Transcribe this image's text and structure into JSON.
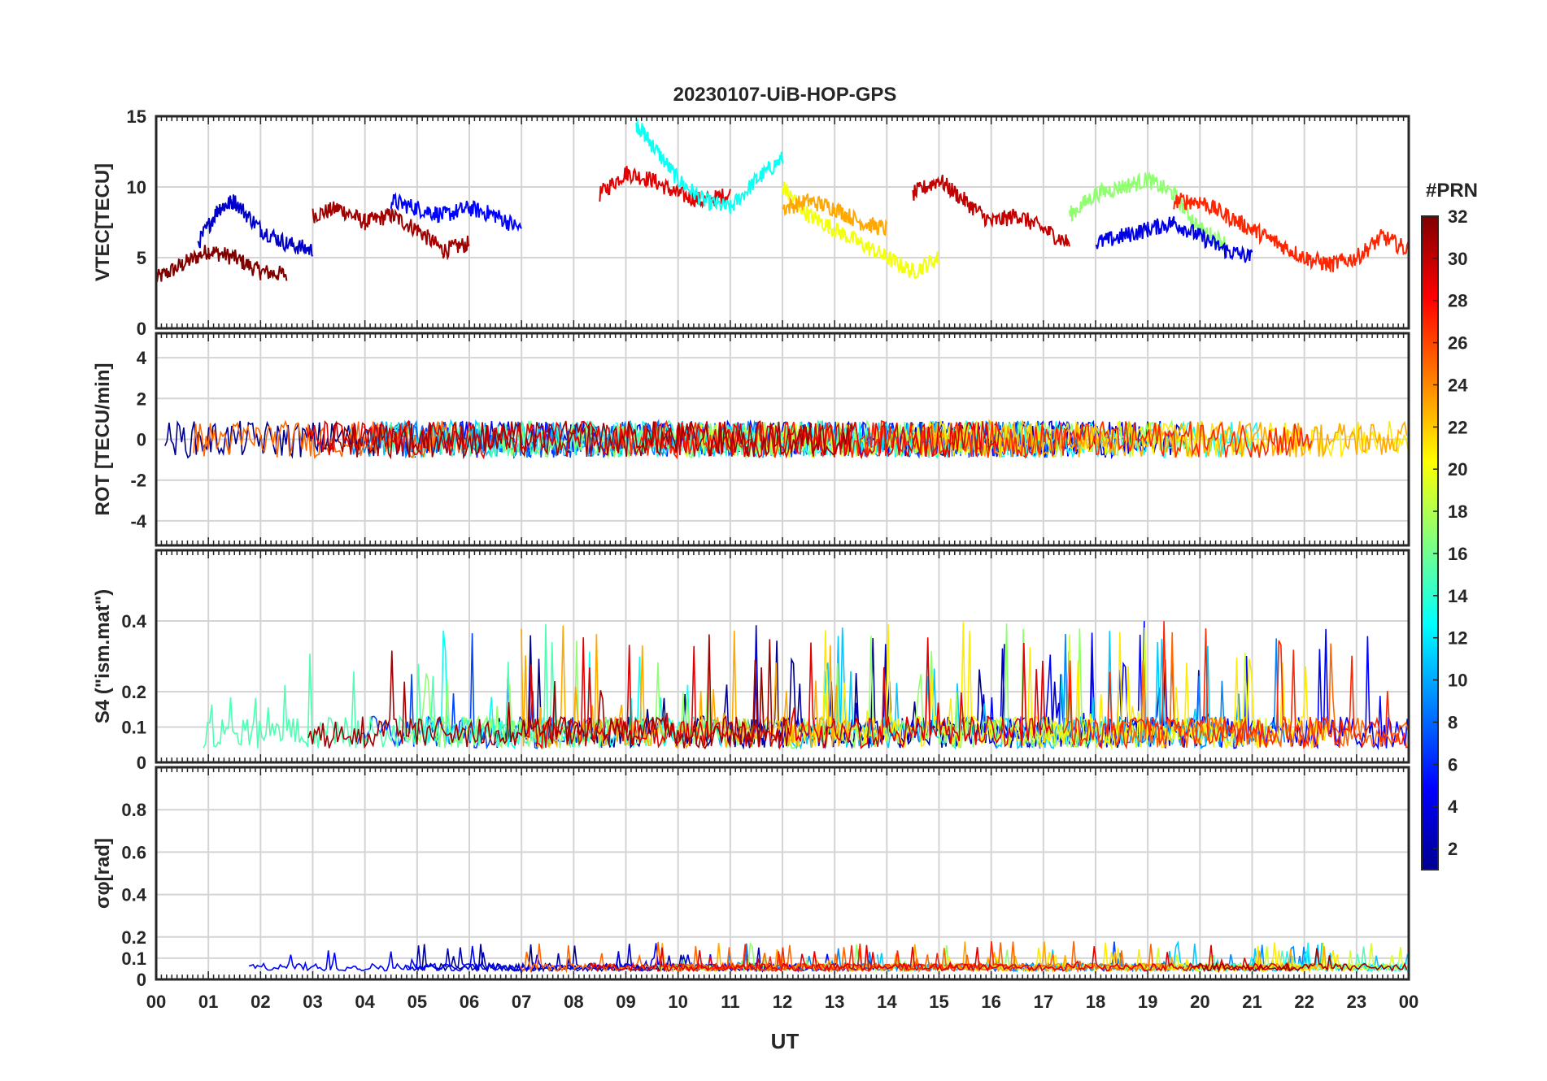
{
  "figure": {
    "title": "20230107-UiB-HOP-GPS",
    "xlabel": "UT",
    "x_tick_labels": [
      "00",
      "01",
      "02",
      "03",
      "04",
      "05",
      "06",
      "07",
      "08",
      "09",
      "10",
      "11",
      "12",
      "13",
      "14",
      "15",
      "16",
      "17",
      "18",
      "19",
      "20",
      "21",
      "22",
      "23",
      "00"
    ]
  },
  "colorbar": {
    "title": "#PRN",
    "range": [
      1,
      32
    ],
    "tick_labels": [
      "2",
      "4",
      "6",
      "8",
      "10",
      "12",
      "14",
      "16",
      "18",
      "20",
      "22",
      "24",
      "26",
      "28",
      "30",
      "32"
    ],
    "colormap": "jet",
    "colors": [
      "#00008f",
      "#0000ff",
      "#0080ff",
      "#00ffff",
      "#80ff80",
      "#ffff00",
      "#ff8000",
      "#ff0000",
      "#800000"
    ]
  },
  "chart_data": [
    {
      "type": "line",
      "panel": "vtec",
      "ylabel": "VTEC[TECU]",
      "ylim": [
        0,
        15
      ],
      "y_ticks": [
        "0",
        "5",
        "10",
        "15"
      ],
      "grid": true,
      "x_range_hours": [
        0,
        24
      ],
      "series": [
        {
          "prn": 32,
          "x": [
            0.0,
            0.5,
            1.0,
            1.5,
            2.0,
            2.5
          ],
          "y": [
            3.5,
            4.5,
            5.5,
            5.0,
            4.0,
            3.8
          ]
        },
        {
          "prn": 31,
          "x": [
            3.0,
            3.5,
            4.0,
            4.5,
            5.0,
            5.5,
            6.0
          ],
          "y": [
            8.0,
            8.5,
            7.5,
            8.0,
            7.0,
            5.5,
            6.0
          ]
        },
        {
          "prn": 29,
          "x": [
            8.5,
            9.0,
            9.5,
            10.0,
            10.5,
            11.0
          ],
          "y": [
            9.5,
            11.0,
            10.5,
            9.5,
            9.0,
            9.5
          ]
        },
        {
          "prn": 13,
          "x": [
            9.2,
            9.5,
            10.0,
            10.5,
            11.0,
            11.5,
            12.0
          ],
          "y": [
            14.5,
            13.0,
            10.5,
            9.0,
            8.5,
            10.5,
            12.0
          ]
        },
        {
          "prn": 3,
          "x": [
            0.8,
            1.2,
            1.5,
            2.0,
            2.5,
            3.0
          ],
          "y": [
            6.0,
            8.5,
            9.0,
            7.0,
            6.0,
            5.5
          ]
        },
        {
          "prn": 5,
          "x": [
            4.5,
            5.0,
            5.5,
            6.0,
            6.5,
            7.0
          ],
          "y": [
            9.0,
            8.5,
            8.0,
            8.5,
            8.0,
            7.0
          ]
        },
        {
          "prn": 20,
          "x": [
            12.0,
            12.5,
            13.0,
            13.5,
            14.0,
            14.5,
            15.0
          ],
          "y": [
            10.0,
            8.0,
            7.0,
            6.0,
            5.0,
            4.0,
            5.0
          ]
        },
        {
          "prn": 23,
          "x": [
            12.0,
            12.5,
            13.0,
            13.5,
            14.0
          ],
          "y": [
            8.5,
            9.0,
            8.5,
            7.5,
            7.0
          ]
        },
        {
          "prn": 30,
          "x": [
            14.5,
            15.0,
            15.5,
            16.0,
            16.5,
            17.0,
            17.5
          ],
          "y": [
            9.5,
            10.5,
            9.0,
            7.5,
            8.0,
            7.0,
            6.0
          ]
        },
        {
          "prn": 17,
          "x": [
            17.5,
            18.0,
            18.5,
            19.0,
            19.5,
            20.0,
            20.5
          ],
          "y": [
            8.0,
            9.5,
            10.0,
            10.5,
            9.5,
            7.0,
            6.0
          ]
        },
        {
          "prn": 4,
          "x": [
            18.0,
            18.5,
            19.0,
            19.5,
            20.0,
            20.5,
            21.0
          ],
          "y": [
            6.0,
            6.5,
            7.0,
            7.5,
            6.5,
            5.5,
            5.0
          ]
        },
        {
          "prn": 27,
          "x": [
            19.5,
            20.0,
            20.5,
            21.0,
            21.5,
            22.0,
            22.5,
            23.0,
            23.5,
            24.0
          ],
          "y": [
            9.0,
            9.0,
            8.0,
            7.0,
            6.0,
            5.0,
            4.5,
            5.0,
            6.5,
            5.5
          ]
        }
      ]
    },
    {
      "type": "line",
      "panel": "rot",
      "ylabel": "ROT [TECU/min]",
      "ylim": [
        -5.2,
        5.2
      ],
      "y_ticks": [
        "-4",
        "-2",
        "0",
        "2",
        "4"
      ],
      "grid": true,
      "x_range_hours": [
        0,
        24
      ]
    },
    {
      "type": "line",
      "panel": "s4",
      "ylabel": "S4 (\"ism.mat\")",
      "ylim": [
        0,
        0.6
      ],
      "y_ticks": [
        "0",
        "0.1",
        "0.2",
        "0.4"
      ],
      "grid": true,
      "x_range_hours": [
        0,
        24
      ]
    },
    {
      "type": "line",
      "panel": "sigma_phi",
      "ylabel": "σφ[rad]",
      "ylim": [
        0,
        1.0
      ],
      "y_ticks": [
        "0",
        "0.1",
        "0.2",
        "0.4",
        "0.6",
        "0.8"
      ],
      "grid": true,
      "x_range_hours": [
        0,
        24
      ]
    }
  ]
}
